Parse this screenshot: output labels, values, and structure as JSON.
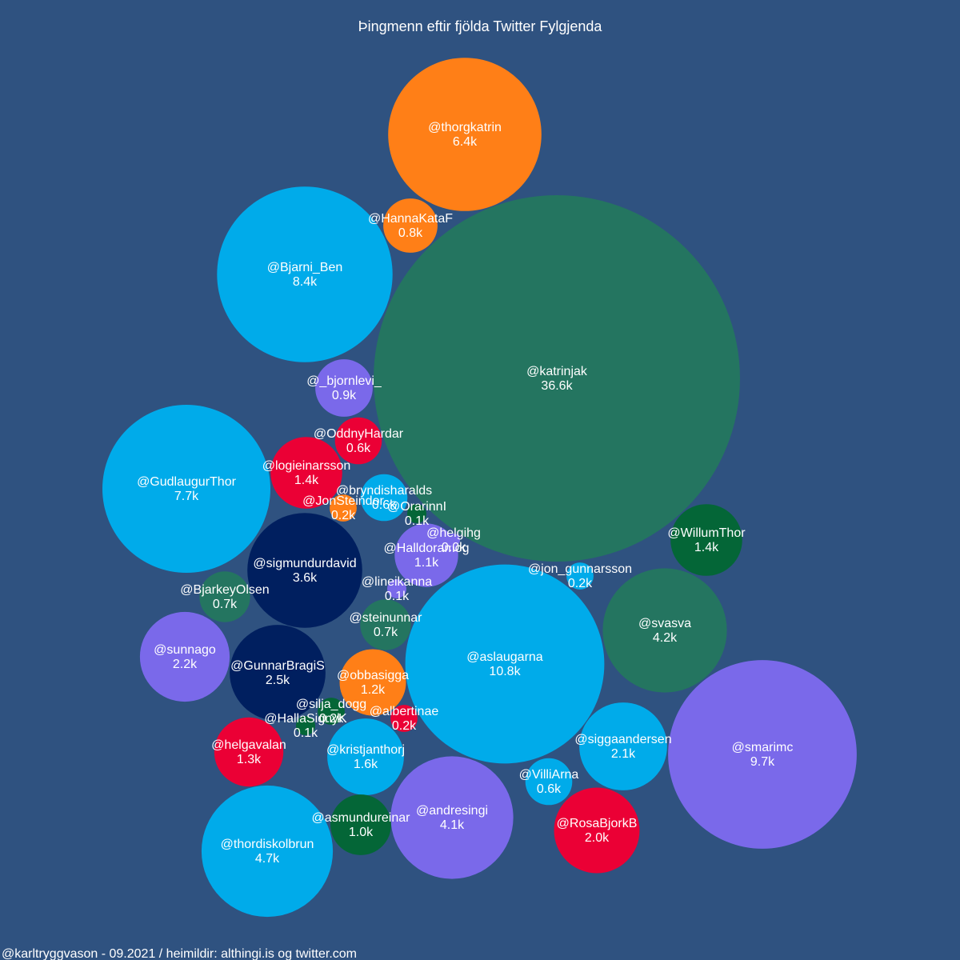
{
  "colors": {
    "background": "#2f5280",
    "dark_green": "#247560",
    "forest_green": "#046637",
    "orange": "#ff7f17",
    "cyan": "#00abea",
    "purple": "#7a69ea",
    "red": "#eb0035",
    "navy": "#001f5f"
  },
  "chart_data": {
    "type": "bubble",
    "title": "Þingmenn eftir fjölda Twitter Fylgjenda",
    "footer": "@karltryggvason - 09.2021 / heimildir: althingi.is og twitter.com",
    "bubbles": [
      {
        "handle": "@katrinjak",
        "value_label": "36.6k",
        "value_k": 36.6,
        "color": "dark_green"
      },
      {
        "handle": "@aslaugarna",
        "value_label": "10.8k",
        "value_k": 10.8,
        "color": "cyan"
      },
      {
        "handle": "@smarimc",
        "value_label": "9.7k",
        "value_k": 9.7,
        "color": "purple"
      },
      {
        "handle": "@Bjarni_Ben",
        "value_label": "8.4k",
        "value_k": 8.4,
        "color": "cyan"
      },
      {
        "handle": "@GudlaugurThor",
        "value_label": "7.7k",
        "value_k": 7.7,
        "color": "cyan"
      },
      {
        "handle": "@thorgkatrin",
        "value_label": "6.4k",
        "value_k": 6.4,
        "color": "orange"
      },
      {
        "handle": "@thordiskolbrun",
        "value_label": "4.7k",
        "value_k": 4.7,
        "color": "cyan"
      },
      {
        "handle": "@svasva",
        "value_label": "4.2k",
        "value_k": 4.2,
        "color": "dark_green"
      },
      {
        "handle": "@andresingi",
        "value_label": "4.1k",
        "value_k": 4.1,
        "color": "purple"
      },
      {
        "handle": "@sigmundurdavid",
        "value_label": "3.6k",
        "value_k": 3.6,
        "color": "navy"
      },
      {
        "handle": "@GunnarBragiS",
        "value_label": "2.5k",
        "value_k": 2.5,
        "color": "navy"
      },
      {
        "handle": "@sunnago",
        "value_label": "2.2k",
        "value_k": 2.2,
        "color": "purple"
      },
      {
        "handle": "@siggaandersen",
        "value_label": "2.1k",
        "value_k": 2.1,
        "color": "cyan"
      },
      {
        "handle": "@RosaBjorkB",
        "value_label": "2.0k",
        "value_k": 2.0,
        "color": "red"
      },
      {
        "handle": "@kristjanthorj",
        "value_label": "1.6k",
        "value_k": 1.6,
        "color": "cyan"
      },
      {
        "handle": "@logieinarsson",
        "value_label": "1.4k",
        "value_k": 1.4,
        "color": "red"
      },
      {
        "handle": "@WillumThor",
        "value_label": "1.4k",
        "value_k": 1.4,
        "color": "forest_green"
      },
      {
        "handle": "@helgavalan",
        "value_label": "1.3k",
        "value_k": 1.3,
        "color": "red"
      },
      {
        "handle": "@obbasigga",
        "value_label": "1.2k",
        "value_k": 1.2,
        "color": "orange"
      },
      {
        "handle": "@Halldoramog",
        "value_label": "1.1k",
        "value_k": 1.1,
        "color": "purple"
      },
      {
        "handle": "@asmundureinar",
        "value_label": "1.0k",
        "value_k": 1.0,
        "color": "forest_green"
      },
      {
        "handle": "@_bjornlevi_",
        "value_label": "0.9k",
        "value_k": 0.9,
        "color": "purple"
      },
      {
        "handle": "@HannaKataF",
        "value_label": "0.8k",
        "value_k": 0.8,
        "color": "orange"
      },
      {
        "handle": "@BjarkeyOlsen",
        "value_label": "0.7k",
        "value_k": 0.7,
        "color": "dark_green"
      },
      {
        "handle": "@steinunnar",
        "value_label": "0.7k",
        "value_k": 0.7,
        "color": "dark_green"
      },
      {
        "handle": "@OddnyHardar",
        "value_label": "0.6k",
        "value_k": 0.6,
        "color": "red"
      },
      {
        "handle": "@bryndisharalds",
        "value_label": "0.6k",
        "value_k": 0.6,
        "color": "cyan"
      },
      {
        "handle": "@VilliArna",
        "value_label": "0.6k",
        "value_k": 0.6,
        "color": "cyan"
      },
      {
        "handle": "@JonSteindor",
        "value_label": "0.2k",
        "value_k": 0.2,
        "color": "orange"
      },
      {
        "handle": "@jon_gunnarsson",
        "value_label": "0.2k",
        "value_k": 0.2,
        "color": "cyan"
      },
      {
        "handle": "@albertinae",
        "value_label": "0.2k",
        "value_k": 0.2,
        "color": "red"
      },
      {
        "handle": "@silja_dogg",
        "value_label": "0.2k",
        "value_k": 0.2,
        "color": "forest_green"
      },
      {
        "handle": "@OrarinnI",
        "value_label": "0.1k",
        "value_k": 0.1,
        "color": "forest_green"
      },
      {
        "handle": "@lineikanna",
        "value_label": "0.1k",
        "value_k": 0.1,
        "color": "purple"
      },
      {
        "handle": "@HallaSignyK",
        "value_label": "0.1k",
        "value_k": 0.1,
        "color": "forest_green"
      },
      {
        "handle": "@helgihg",
        "value_label": "0.0k",
        "value_k": 0.0,
        "color": "purple"
      }
    ]
  }
}
